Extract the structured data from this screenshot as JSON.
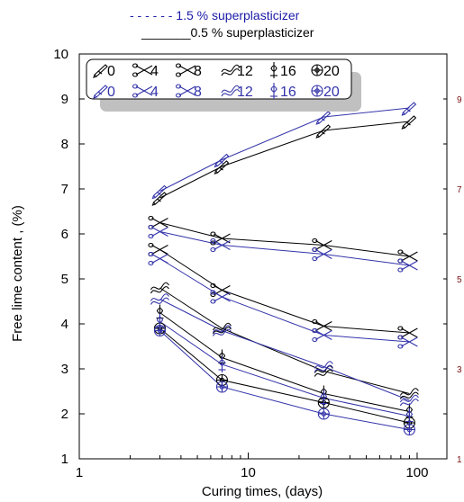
{
  "header": {
    "line1_label": "- - - - - - 1.5 % superplasticizer",
    "line2_label": "_______0.5 % superplasticizer",
    "line1_color": "#1a1aa6",
    "line2_color": "#000000"
  },
  "chart_data": {
    "type": "line",
    "xlabel": "Curing times, (days)",
    "ylabel": "Free lime content , (%)",
    "x_scale": "log",
    "xlim": [
      1,
      150
    ],
    "ylim": [
      1,
      10
    ],
    "x_ticks": [
      1,
      10,
      100
    ],
    "x_tick_labels": [
      "1",
      "10",
      "100"
    ],
    "y_ticks": [
      1,
      2,
      3,
      4,
      5,
      6,
      7,
      8,
      9,
      10
    ],
    "y_tick_labels": [
      "1",
      "2",
      "3",
      "4",
      "5",
      "6",
      "7",
      "8",
      "9",
      "10"
    ],
    "right_axis_tick_labels": [
      "1",
      "3",
      "5",
      "7",
      "9"
    ],
    "right_axis_color": "#7a1010",
    "grid": false,
    "legend_placement": "top-left inside",
    "series_color_1_5": "#3333aa",
    "series_color_0_5": "#000000",
    "x": [
      3,
      7,
      28,
      90
    ],
    "series": [
      {
        "name": "0",
        "group": "0.5 % superplasticizer",
        "marker": "pen-icon",
        "values": [
          6.8,
          7.5,
          8.3,
          8.5
        ]
      },
      {
        "name": "4",
        "group": "0.5 % superplasticizer",
        "marker": "scissors-icon",
        "values": [
          6.25,
          5.9,
          5.75,
          5.5
        ]
      },
      {
        "name": "8",
        "group": "0.5 % superplasticizer",
        "marker": "scissors-icon",
        "values": [
          5.65,
          4.75,
          3.95,
          3.8
        ]
      },
      {
        "name": "12",
        "group": "0.5 % superplasticizer",
        "marker": "wave-icon",
        "values": [
          4.8,
          3.9,
          2.95,
          2.45
        ]
      },
      {
        "name": "16",
        "group": "0.5 % superplasticizer",
        "marker": "lamp-icon",
        "values": [
          4.25,
          3.25,
          2.45,
          2.05
        ]
      },
      {
        "name": "20",
        "group": "0.5 % superplasticizer",
        "marker": "circle-icon",
        "values": [
          3.9,
          2.75,
          2.25,
          1.8
        ]
      },
      {
        "name": "0",
        "group": "1.5 % superplasticizer",
        "marker": "pen-icon",
        "values": [
          6.95,
          7.65,
          8.6,
          8.8
        ]
      },
      {
        "name": "4",
        "group": "1.5 % superplasticizer",
        "marker": "scissors-icon",
        "values": [
          6.05,
          5.75,
          5.55,
          5.3
        ]
      },
      {
        "name": "8",
        "group": "1.5 % superplasticizer",
        "marker": "scissors-icon",
        "values": [
          5.45,
          4.6,
          3.75,
          3.6
        ]
      },
      {
        "name": "12",
        "group": "1.5 % superplasticizer",
        "marker": "wave-icon",
        "values": [
          4.55,
          3.85,
          3.05,
          2.3
        ]
      },
      {
        "name": "16",
        "group": "1.5 % superplasticizer",
        "marker": "lamp-icon",
        "values": [
          4.05,
          3.1,
          2.35,
          1.95
        ]
      },
      {
        "name": "20",
        "group": "1.5 % superplasticizer",
        "marker": "circle-icon",
        "values": [
          3.85,
          2.6,
          2.0,
          1.65
        ]
      }
    ]
  }
}
